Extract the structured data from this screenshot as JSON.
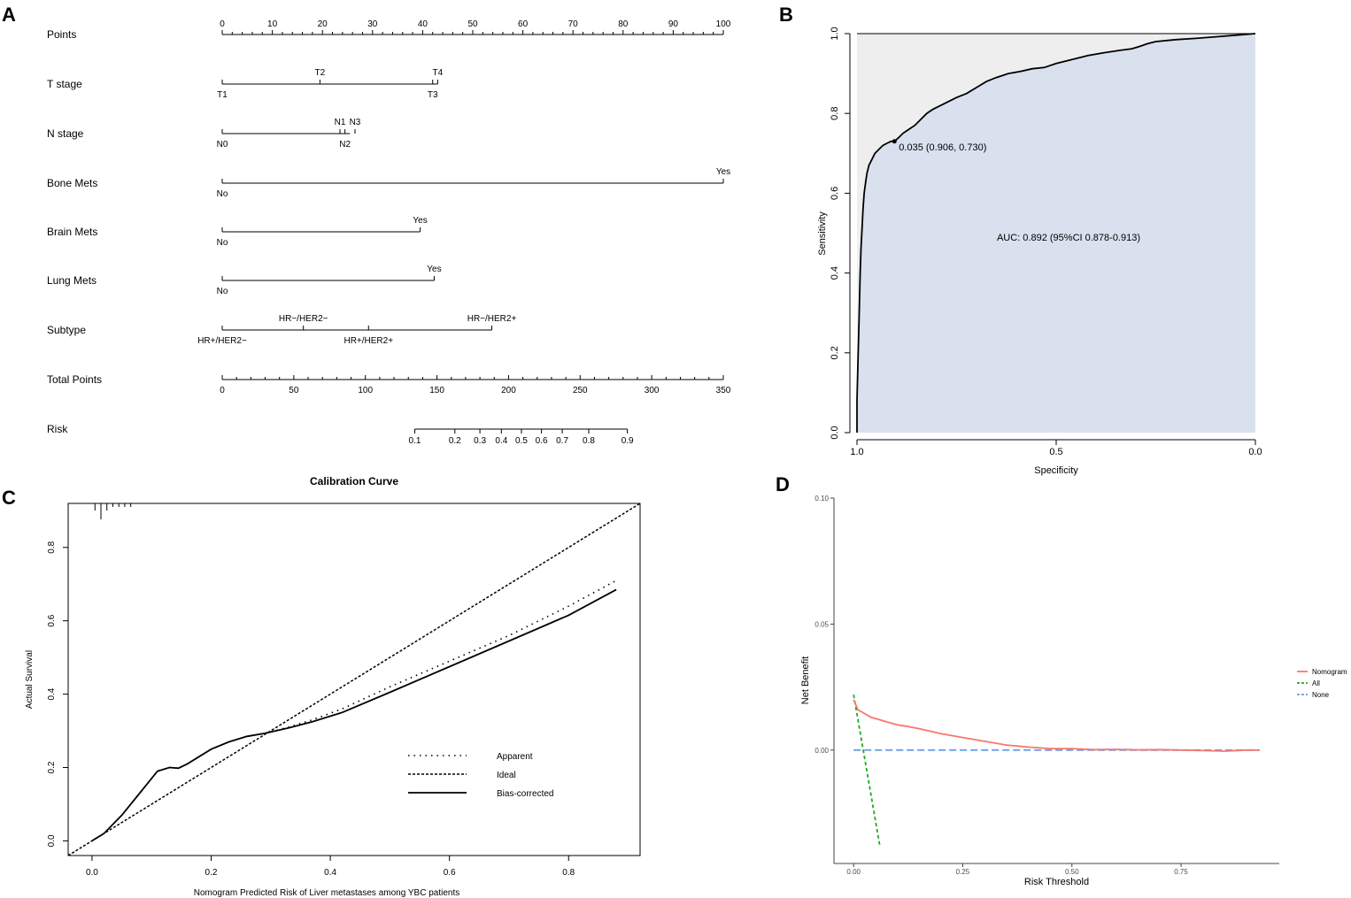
{
  "panels": {
    "a": "A",
    "b": "B",
    "c": "C",
    "d": "D"
  },
  "colors": {
    "black": "#000000",
    "roc_fill": "#d9e1ef",
    "roc_bg": "#eeeeee",
    "nomogram": "#f8766d",
    "all": "#1fab1f",
    "none": "#6a9ee8",
    "axis_gray": "#444444"
  },
  "chart_data": [
    {
      "type": "nomogram",
      "panel": "A",
      "rows": [
        {
          "label": "Points",
          "axis": {
            "min": 0,
            "max": 100,
            "major": [
              0,
              10,
              20,
              30,
              40,
              50,
              60,
              70,
              80,
              90,
              100
            ]
          }
        },
        {
          "label": "T stage",
          "line": [
            0,
            43
          ],
          "above": [
            {
              "text": "T2",
              "value": 19.5
            },
            {
              "text": "T4",
              "value": 43
            }
          ],
          "below": [
            {
              "text": "T1",
              "value": 0
            },
            {
              "text": "T3",
              "value": 42
            }
          ]
        },
        {
          "label": "N stage",
          "line": [
            0,
            25.5
          ],
          "above": [
            {
              "text": "N1",
              "value": 23.5
            },
            {
              "text": "N3",
              "value": 26.5
            }
          ],
          "below": [
            {
              "text": "N0",
              "value": 0
            },
            {
              "text": "N2",
              "value": 24.5
            }
          ]
        },
        {
          "label": "Bone Mets",
          "line": [
            0,
            100
          ],
          "above": [
            {
              "text": "Yes",
              "value": 100
            }
          ],
          "below": [
            {
              "text": "No",
              "value": 0
            }
          ]
        },
        {
          "label": "Brain Mets",
          "line": [
            0,
            39.5
          ],
          "above": [
            {
              "text": "Yes",
              "value": 39.5
            }
          ],
          "below": [
            {
              "text": "No",
              "value": 0
            }
          ]
        },
        {
          "label": "Lung Mets",
          "line": [
            0,
            42.3
          ],
          "above": [
            {
              "text": "Yes",
              "value": 42.3
            }
          ],
          "below": [
            {
              "text": "No",
              "value": 0
            }
          ]
        },
        {
          "label": "Subtype",
          "line": [
            0,
            53.8
          ],
          "above": [
            {
              "text": "HR−/HER2−",
              "value": 16.2
            },
            {
              "text": "HR−/HER2+",
              "value": 53.8
            }
          ],
          "below": [
            {
              "text": "HR+/HER2−",
              "value": 0
            },
            {
              "text": "HR+/HER2+",
              "value": 29.2
            }
          ]
        },
        {
          "label": "Total Points",
          "axis": {
            "min": 0,
            "max": 350,
            "major": [
              0,
              50,
              100,
              150,
              200,
              250,
              300,
              350
            ]
          }
        },
        {
          "label": "Risk",
          "risk_ticks": [
            {
              "text": "0.1",
              "points": 134.5
            },
            {
              "text": "0.2",
              "points": 162.5
            },
            {
              "text": "0.3",
              "points": 180
            },
            {
              "text": "0.4",
              "points": 195
            },
            {
              "text": "0.5",
              "points": 209
            },
            {
              "text": "0.6",
              "points": 223
            },
            {
              "text": "0.7",
              "points": 237.5
            },
            {
              "text": "0.8",
              "points": 256
            },
            {
              "text": "0.9",
              "points": 283
            }
          ]
        }
      ]
    },
    {
      "type": "line",
      "panel": "B",
      "subtype": "roc",
      "xlabel": "Specificity",
      "ylabel": "Sensitivity",
      "xlim": [
        1.0,
        0.0
      ],
      "ylim": [
        0.0,
        1.0
      ],
      "xticks": [
        "1.0",
        "0.5",
        "0.0"
      ],
      "yticks": [
        "0.0",
        "0.2",
        "0.4",
        "0.6",
        "0.8",
        "1.0"
      ],
      "auc_text": "AUC: 0.892 (95%CI 0.878-0.913)",
      "threshold_text": "0.035 (0.906, 0.730)",
      "threshold_point": {
        "specificity": 0.906,
        "sensitivity": 0.73
      },
      "specificity": [
        1.0,
        1.0,
        0.998,
        0.995,
        0.992,
        0.99,
        0.987,
        0.985,
        0.982,
        0.978,
        0.975,
        0.97,
        0.965,
        0.96,
        0.955,
        0.945,
        0.935,
        0.925,
        0.915,
        0.906,
        0.895,
        0.885,
        0.87,
        0.855,
        0.84,
        0.825,
        0.81,
        0.79,
        0.77,
        0.75,
        0.725,
        0.7,
        0.675,
        0.65,
        0.62,
        0.59,
        0.56,
        0.53,
        0.5,
        0.46,
        0.42,
        0.38,
        0.34,
        0.31,
        0.29,
        0.27,
        0.25,
        0.2,
        0.15,
        0.1,
        0.05,
        0.0
      ],
      "sensitivity": [
        0.0,
        0.08,
        0.16,
        0.28,
        0.4,
        0.46,
        0.52,
        0.56,
        0.6,
        0.63,
        0.65,
        0.67,
        0.68,
        0.69,
        0.7,
        0.71,
        0.72,
        0.725,
        0.73,
        0.73,
        0.74,
        0.75,
        0.76,
        0.77,
        0.785,
        0.8,
        0.81,
        0.82,
        0.83,
        0.84,
        0.85,
        0.865,
        0.88,
        0.89,
        0.9,
        0.905,
        0.912,
        0.915,
        0.925,
        0.935,
        0.945,
        0.952,
        0.958,
        0.962,
        0.968,
        0.975,
        0.98,
        0.985,
        0.988,
        0.992,
        0.996,
        1.0
      ]
    },
    {
      "type": "line",
      "panel": "C",
      "subtype": "calibration",
      "title": "Calibration Curve",
      "xlabel": "Nomogram Predicted Risk of Liver metastases among YBC patients",
      "ylabel": "Actual Survival",
      "xlim": [
        -0.04,
        0.92
      ],
      "ylim": [
        -0.04,
        0.92
      ],
      "xticks": [
        "0.0",
        "0.2",
        "0.4",
        "0.6",
        "0.8"
      ],
      "yticks": [
        "0.0",
        "0.2",
        "0.4",
        "0.6",
        "0.8"
      ],
      "legend": [
        "Apparent",
        "Ideal",
        "Bias-corrected"
      ],
      "series": [
        {
          "name": "Apparent",
          "x": [
            0.0,
            0.02,
            0.05,
            0.08,
            0.11,
            0.13,
            0.145,
            0.16,
            0.2,
            0.23,
            0.26,
            0.29,
            0.33,
            0.37,
            0.42,
            0.5,
            0.6,
            0.7,
            0.8,
            0.88
          ],
          "y": [
            0.0,
            0.02,
            0.07,
            0.13,
            0.19,
            0.2,
            0.198,
            0.21,
            0.25,
            0.27,
            0.285,
            0.293,
            0.31,
            0.33,
            0.36,
            0.42,
            0.49,
            0.56,
            0.64,
            0.71
          ]
        },
        {
          "name": "Ideal",
          "x": [
            -0.04,
            0.92
          ],
          "y": [
            -0.04,
            0.92
          ]
        },
        {
          "name": "Bias-corrected",
          "x": [
            0.0,
            0.02,
            0.05,
            0.08,
            0.11,
            0.13,
            0.145,
            0.16,
            0.2,
            0.23,
            0.26,
            0.29,
            0.33,
            0.37,
            0.42,
            0.5,
            0.6,
            0.7,
            0.8,
            0.88
          ],
          "y": [
            0.0,
            0.02,
            0.07,
            0.13,
            0.19,
            0.2,
            0.198,
            0.21,
            0.25,
            0.27,
            0.285,
            0.293,
            0.308,
            0.325,
            0.35,
            0.405,
            0.475,
            0.545,
            0.615,
            0.685
          ]
        }
      ],
      "rug_x": [
        0.005,
        0.015,
        0.025,
        0.035,
        0.045,
        0.055,
        0.065
      ]
    },
    {
      "type": "line",
      "panel": "D",
      "subtype": "decision_curve",
      "xlabel": "Risk Threshold",
      "ylabel": "Net Benefit",
      "xlim": [
        -0.045,
        0.975
      ],
      "ylim": [
        -0.045,
        0.1
      ],
      "xticks": [
        "0.00",
        "0.25",
        "0.50",
        "0.75"
      ],
      "yticks": [
        "0.00",
        "0.05",
        "0.10"
      ],
      "legend": [
        "Nomogram",
        "All",
        "None"
      ],
      "series": [
        {
          "name": "Nomogram",
          "x": [
            0.0,
            0.01,
            0.02,
            0.04,
            0.06,
            0.08,
            0.1,
            0.12,
            0.15,
            0.2,
            0.25,
            0.3,
            0.35,
            0.4,
            0.45,
            0.5,
            0.55,
            0.6,
            0.65,
            0.7,
            0.75,
            0.8,
            0.85,
            0.9,
            0.93
          ],
          "y": [
            0.02,
            0.016,
            0.015,
            0.013,
            0.012,
            0.011,
            0.01,
            0.0095,
            0.0085,
            0.0065,
            0.005,
            0.0035,
            0.002,
            0.0012,
            0.0006,
            0.0006,
            0.0002,
            0.0003,
            0.0001,
            0.0002,
            0.0,
            -0.0002,
            -0.0004,
            0.0,
            0.0
          ]
        },
        {
          "name": "All",
          "x": [
            0.0,
            0.06
          ],
          "y": [
            0.022,
            -0.038
          ]
        },
        {
          "name": "None",
          "x": [
            0.0,
            0.93
          ],
          "y": [
            0.0,
            0.0
          ]
        }
      ]
    }
  ]
}
